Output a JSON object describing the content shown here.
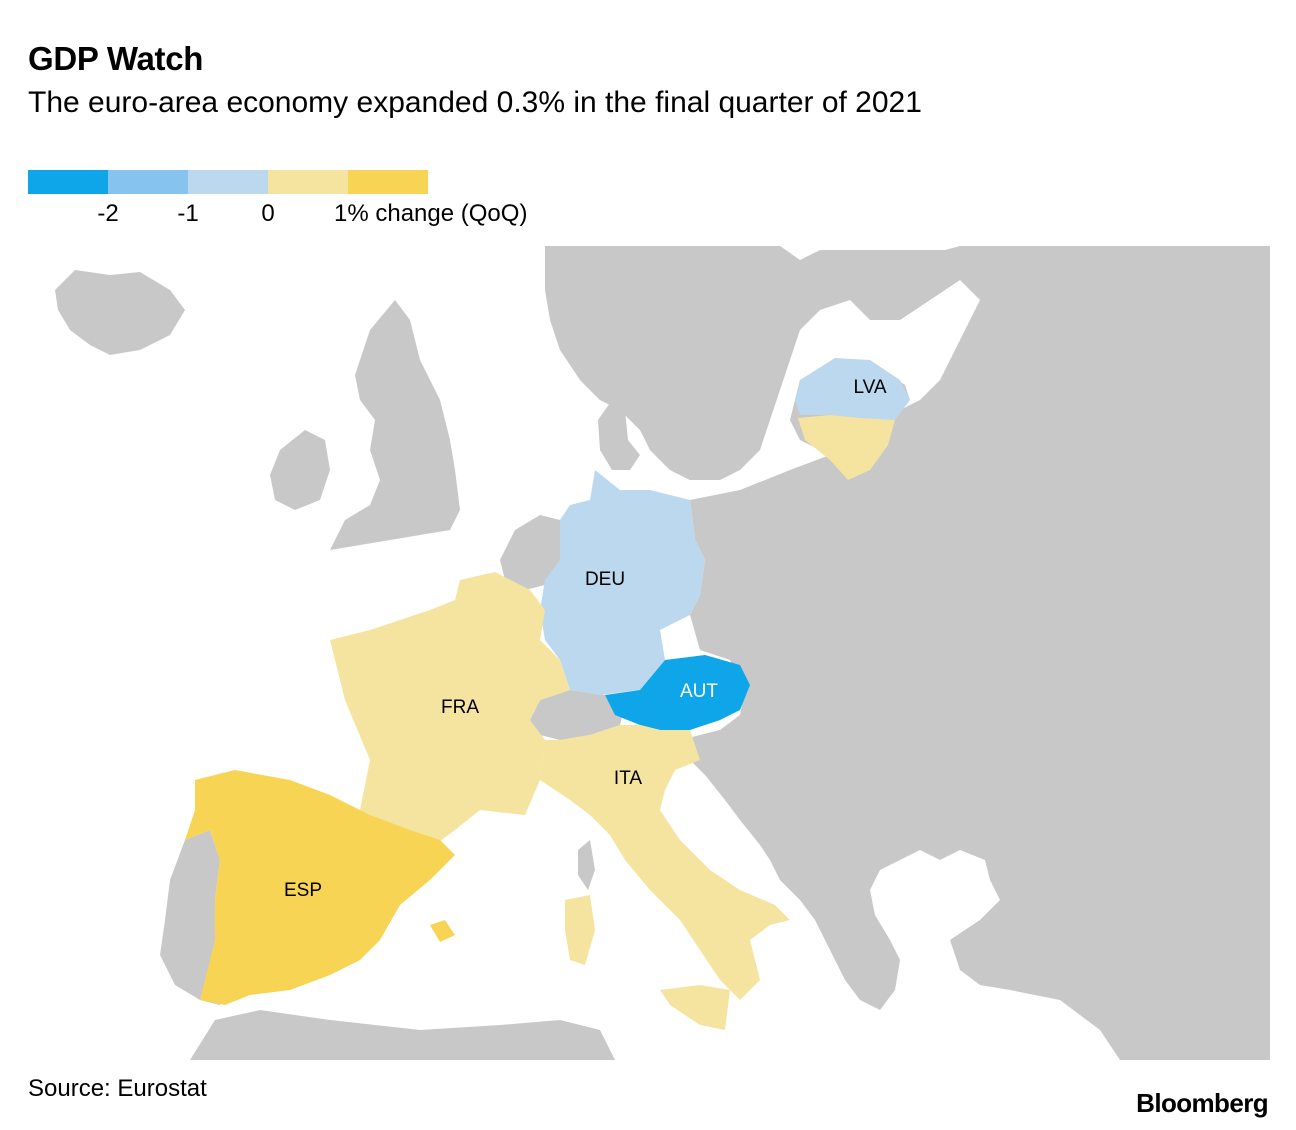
{
  "title": "GDP Watch",
  "subtitle": "The euro-area economy expanded 0.3% in the final quarter of 2021",
  "legend": {
    "swatches": [
      "#0ea5e9",
      "#86c3ee",
      "#bcd8ee",
      "#f5e3a0",
      "#f8d455"
    ],
    "ticks": [
      "-2",
      "-1",
      "0",
      "1% change (QoQ)"
    ]
  },
  "colors": {
    "land": "#c8c8c8",
    "sea": "#ffffff"
  },
  "countries": {
    "lva": {
      "code": "LVA",
      "color": "#bcd8ee"
    },
    "ltu": {
      "color": "#f5e3a0"
    },
    "deu": {
      "code": "DEU",
      "color": "#bcd8ee"
    },
    "fra": {
      "code": "FRA",
      "color": "#f5e3a0"
    },
    "aut": {
      "code": "AUT",
      "color": "#0ea5e9"
    },
    "ita": {
      "code": "ITA",
      "color": "#f5e3a0"
    },
    "esp": {
      "code": "ESP",
      "color": "#f8d455"
    }
  },
  "source": "Source: Eurostat",
  "brand": "Bloomberg"
}
